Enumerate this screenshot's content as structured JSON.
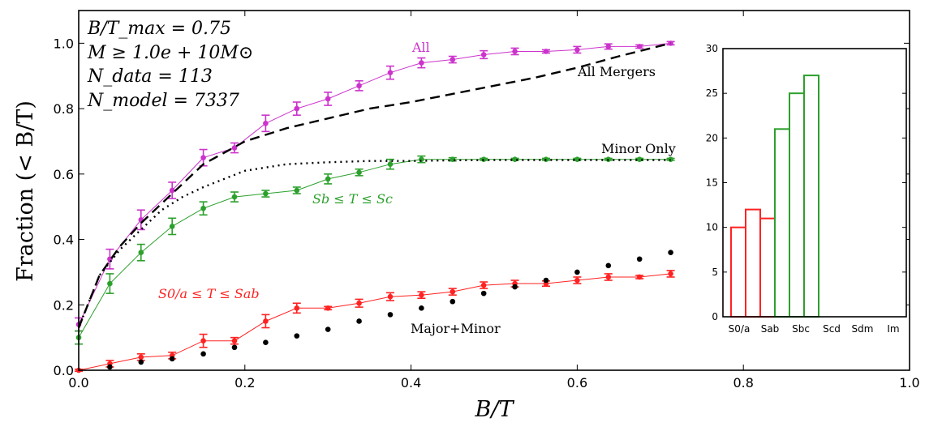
{
  "chart_data": [
    {
      "type": "line",
      "xlabel": "B/T",
      "ylabel": "Fraction (< B/T)",
      "xlim": [
        0.0,
        1.0
      ],
      "ylim": [
        0.0,
        1.1
      ],
      "xticks": [
        0.0,
        0.2,
        0.4,
        0.6,
        0.8,
        1.0
      ],
      "yticks": [
        0.0,
        0.2,
        0.4,
        0.6,
        0.8,
        1.0
      ],
      "xtick_labels": [
        "0.0",
        "0.2",
        "0.4",
        "0.6",
        "0.8",
        "1.0"
      ],
      "ytick_labels": [
        "0.0",
        "0.2",
        "0.4",
        "0.6",
        "0.8",
        "1.0"
      ],
      "annotations": [
        "B/T_max = 0.75",
        "M ≥ 1.0e + 10M⊙",
        "N_data = 113",
        "N_model = 7337"
      ],
      "series": [
        {
          "name": "All",
          "color": "#cc33cc",
          "x": [
            0.0,
            0.0375,
            0.075,
            0.1125,
            0.15,
            0.1875,
            0.225,
            0.2625,
            0.3,
            0.3375,
            0.375,
            0.4125,
            0.45,
            0.4875,
            0.525,
            0.5625,
            0.6,
            0.6375,
            0.675,
            0.7125
          ],
          "y": [
            0.14,
            0.34,
            0.46,
            0.55,
            0.65,
            0.68,
            0.755,
            0.8,
            0.83,
            0.87,
            0.91,
            0.94,
            0.95,
            0.965,
            0.975,
            0.975,
            0.98,
            0.99,
            0.99,
            1.0
          ],
          "err": [
            0.02,
            0.03,
            0.03,
            0.025,
            0.025,
            0.015,
            0.025,
            0.02,
            0.02,
            0.015,
            0.02,
            0.015,
            0.01,
            0.012,
            0.01,
            0.005,
            0.01,
            0.008,
            0.005,
            0.005
          ]
        },
        {
          "name": "Sb ≤ T ≤ Sc",
          "color": "#2ca02c",
          "x": [
            0.0,
            0.0375,
            0.075,
            0.1125,
            0.15,
            0.1875,
            0.225,
            0.2625,
            0.3,
            0.3375,
            0.375,
            0.4125,
            0.45,
            0.4875,
            0.525,
            0.5625,
            0.6,
            0.6375,
            0.675,
            0.7125
          ],
          "y": [
            0.1,
            0.265,
            0.36,
            0.44,
            0.495,
            0.53,
            0.54,
            0.55,
            0.585,
            0.605,
            0.63,
            0.645,
            0.645,
            0.645,
            0.645,
            0.645,
            0.645,
            0.645,
            0.645,
            0.645
          ],
          "err": [
            0.02,
            0.03,
            0.025,
            0.025,
            0.02,
            0.015,
            0.01,
            0.01,
            0.015,
            0.01,
            0.015,
            0.01,
            0.005,
            0.003,
            0.003,
            0.003,
            0.003,
            0.003,
            0.003,
            0.003
          ]
        },
        {
          "name": "S0/a ≤ T ≤ Sab",
          "color": "#ff2222",
          "x": [
            0.0,
            0.0375,
            0.075,
            0.1125,
            0.15,
            0.1875,
            0.225,
            0.2625,
            0.3,
            0.3375,
            0.375,
            0.4125,
            0.45,
            0.4875,
            0.525,
            0.5625,
            0.6,
            0.6375,
            0.675,
            0.7125
          ],
          "y": [
            0.0,
            0.02,
            0.04,
            0.045,
            0.09,
            0.09,
            0.15,
            0.19,
            0.19,
            0.205,
            0.225,
            0.23,
            0.24,
            0.26,
            0.265,
            0.265,
            0.275,
            0.285,
            0.285,
            0.295
          ],
          "err": [
            0.003,
            0.01,
            0.01,
            0.01,
            0.02,
            0.01,
            0.02,
            0.015,
            0.005,
            0.012,
            0.012,
            0.01,
            0.01,
            0.01,
            0.01,
            0.008,
            0.01,
            0.01,
            0.005,
            0.01
          ]
        },
        {
          "name": "All Mergers",
          "style": "dashed",
          "color": "#000000",
          "x": [
            0.0,
            0.025,
            0.05,
            0.075,
            0.1,
            0.125,
            0.15,
            0.2,
            0.25,
            0.3,
            0.35,
            0.4,
            0.45,
            0.5,
            0.55,
            0.6,
            0.65,
            0.7125
          ],
          "y": [
            0.13,
            0.29,
            0.38,
            0.45,
            0.51,
            0.57,
            0.63,
            0.7,
            0.74,
            0.77,
            0.8,
            0.82,
            0.845,
            0.87,
            0.895,
            0.925,
            0.96,
            1.0
          ]
        },
        {
          "name": "Minor Only",
          "style": "dotted",
          "color": "#000000",
          "x": [
            0.0,
            0.025,
            0.05,
            0.075,
            0.1,
            0.125,
            0.15,
            0.2,
            0.25,
            0.3,
            0.35,
            0.4,
            0.45,
            0.5,
            0.55,
            0.6,
            0.65,
            0.7125
          ],
          "y": [
            0.13,
            0.29,
            0.37,
            0.43,
            0.49,
            0.53,
            0.56,
            0.61,
            0.63,
            0.636,
            0.64,
            0.64,
            0.642,
            0.643,
            0.643,
            0.643,
            0.643,
            0.643
          ]
        },
        {
          "name": "Major+Minor",
          "style": "points",
          "color": "#000000",
          "x": [
            0.0375,
            0.075,
            0.1125,
            0.15,
            0.1875,
            0.225,
            0.2625,
            0.3,
            0.3375,
            0.375,
            0.4125,
            0.45,
            0.4875,
            0.525,
            0.5625,
            0.6,
            0.6375,
            0.675,
            0.7125
          ],
          "y": [
            0.01,
            0.025,
            0.035,
            0.05,
            0.07,
            0.085,
            0.105,
            0.125,
            0.15,
            0.17,
            0.19,
            0.21,
            0.235,
            0.255,
            0.275,
            0.3,
            0.32,
            0.34,
            0.36
          ]
        }
      ]
    },
    {
      "type": "bar",
      "categories": [
        "S0/a",
        "Sab",
        "Sbc",
        "Scd",
        "Sdm",
        "Im"
      ],
      "bars": [
        {
          "value": 10,
          "color": "#ff2222"
        },
        {
          "value": 12,
          "color": "#ff2222"
        },
        {
          "value": 11,
          "color": "#ff2222"
        },
        {
          "value": 21,
          "color": "#2ca02c"
        },
        {
          "value": 25,
          "color": "#2ca02c"
        },
        {
          "value": 27,
          "color": "#2ca02c"
        }
      ],
      "ylim": [
        0,
        30
      ],
      "yticks": [
        0,
        5,
        10,
        15,
        20,
        25,
        30
      ],
      "ytick_labels": [
        "0",
        "5",
        "10",
        "15",
        "20",
        "25",
        "30"
      ]
    }
  ]
}
